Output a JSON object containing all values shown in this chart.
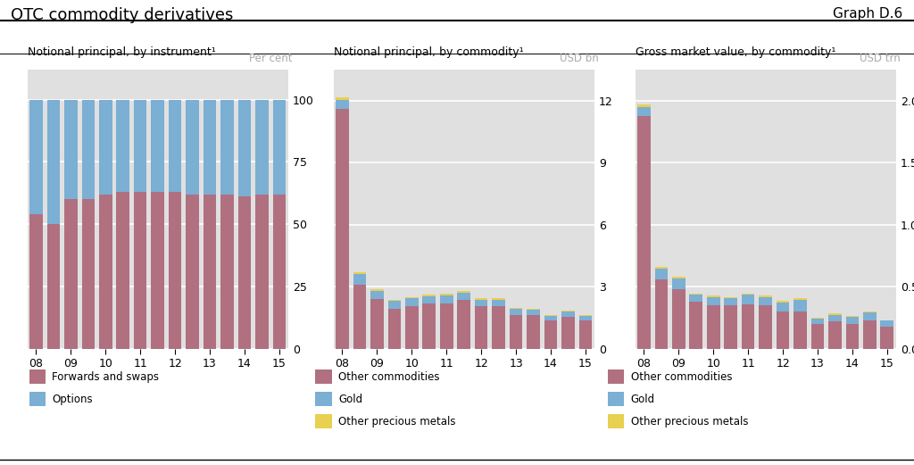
{
  "title": "OTC commodity derivatives",
  "graph_label": "Graph D.6",
  "background_color": "#e0e0e0",
  "fig_background": "#ffffff",
  "chart1": {
    "subtitle": "Notional principal, by instrument¹",
    "unit_label": "Per cent",
    "years": [
      "08",
      "",
      "09",
      "",
      "10",
      "",
      "11",
      "",
      "12",
      "",
      "13",
      "",
      "14",
      "",
      "15"
    ],
    "forwards_swaps": [
      54,
      50,
      60,
      60,
      62,
      63,
      63,
      63,
      63,
      62,
      62,
      62,
      61,
      62,
      62
    ],
    "options": [
      46,
      50,
      40,
      40,
      38,
      37,
      37,
      37,
      37,
      38,
      38,
      38,
      39,
      38,
      38
    ],
    "ylim": [
      0,
      112
    ],
    "yticks": [
      0,
      25,
      50,
      75,
      100
    ],
    "color_forwards": "#b07080",
    "color_options": "#7bafd4",
    "legend": [
      "Forwards and swaps",
      "Options"
    ]
  },
  "chart2": {
    "subtitle": "Notional principal, by commodity¹",
    "unit_label": "USD bn",
    "years": [
      "08",
      "",
      "09",
      "",
      "10",
      "",
      "11",
      "",
      "12",
      "",
      "13",
      "",
      "14",
      "",
      "15"
    ],
    "other_commodities": [
      11.6,
      3.1,
      2.4,
      1.95,
      2.05,
      2.2,
      2.2,
      2.35,
      2.05,
      2.05,
      1.65,
      1.65,
      1.35,
      1.55,
      1.35
    ],
    "gold": [
      0.45,
      0.5,
      0.4,
      0.35,
      0.38,
      0.35,
      0.37,
      0.35,
      0.32,
      0.32,
      0.27,
      0.25,
      0.22,
      0.25,
      0.22
    ],
    "precious_metals": [
      0.12,
      0.1,
      0.1,
      0.08,
      0.08,
      0.08,
      0.08,
      0.08,
      0.06,
      0.06,
      0.05,
      0.05,
      0.04,
      0.05,
      0.04
    ],
    "ylim": [
      0,
      13.5
    ],
    "yticks": [
      0,
      3,
      6,
      9,
      12
    ],
    "color_other": "#b07080",
    "color_gold": "#7bafd4",
    "color_precious": "#e8d050",
    "legend": [
      "Other commodities",
      "Gold",
      "Other precious metals"
    ]
  },
  "chart3": {
    "subtitle": "Gross market value, by commodity¹",
    "unit_label": "USD trn",
    "years": [
      "08",
      "",
      "09",
      "",
      "10",
      "",
      "11",
      "",
      "12",
      "",
      "13",
      "",
      "14",
      "",
      "15"
    ],
    "other_commodities": [
      1.88,
      0.56,
      0.48,
      0.38,
      0.35,
      0.35,
      0.36,
      0.35,
      0.3,
      0.3,
      0.2,
      0.22,
      0.2,
      0.23,
      0.18
    ],
    "gold": [
      0.07,
      0.085,
      0.085,
      0.055,
      0.065,
      0.055,
      0.075,
      0.065,
      0.075,
      0.095,
      0.045,
      0.055,
      0.055,
      0.065,
      0.045
    ],
    "precious_metals": [
      0.018,
      0.018,
      0.018,
      0.013,
      0.013,
      0.013,
      0.013,
      0.013,
      0.01,
      0.01,
      0.008,
      0.008,
      0.008,
      0.008,
      0.007
    ],
    "ylim": [
      0,
      2.25
    ],
    "yticks": [
      0.0,
      0.5,
      1.0,
      1.5,
      2.0
    ],
    "color_other": "#b07080",
    "color_gold": "#7bafd4",
    "color_precious": "#e8d050",
    "legend": [
      "Other commodities",
      "Gold",
      "Other precious metals"
    ]
  }
}
